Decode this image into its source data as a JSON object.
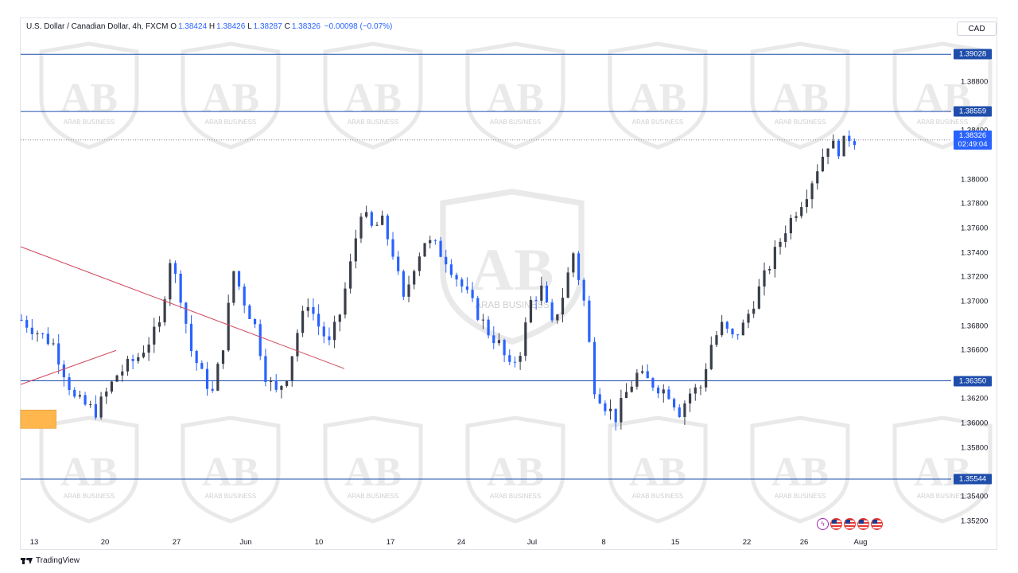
{
  "header": {
    "symbol": "U.S. Dollar / Canadian Dollar, 4h, FXCM",
    "open_label": "O",
    "open": "1.38424",
    "high_label": "H",
    "high": "1.38426",
    "low_label": "L",
    "low": "1.38287",
    "close_label": "C",
    "close": "1.38326",
    "change": "−0.00098 (−0.07%)"
  },
  "currency_button": "CAD",
  "footer": {
    "brand": "TradingView"
  },
  "watermark_text": "ARAB BUSINESS",
  "colors": {
    "candle": "#2962ff",
    "candle_dark": "#3a3e4a",
    "hline": "#1e4dab",
    "trendline": "#d2485e",
    "zone": "#ffb74d",
    "watermark": "#d7d7d7"
  },
  "events": [
    "flash-icon",
    "us-flag-icon",
    "us-flag-icon",
    "us-flag-icon",
    "us-flag-icon"
  ],
  "chart_data": {
    "type": "candlestick",
    "timeframe": "4h",
    "y_ticks": [
      "1.38800",
      "1.38400",
      "1.38000",
      "1.37800",
      "1.37600",
      "1.37400",
      "1.37200",
      "1.37000",
      "1.36800",
      "1.36600",
      "1.36200",
      "1.36000",
      "1.35800",
      "1.35400",
      "1.35200"
    ],
    "x_ticks": [
      "13",
      "20",
      "27",
      "Jun",
      "10",
      "17",
      "24",
      "Jul",
      "8",
      "15",
      "22",
      "26",
      "Aug"
    ],
    "horizontal_levels": [
      "1.39028",
      "1.38559",
      "1.36350",
      "1.35544"
    ],
    "current_price": {
      "value": "1.38326",
      "countdown": "02:49:04"
    },
    "ylim": [
      1.351,
      1.3918
    ],
    "price_path": [
      [
        0,
        1.3685
      ],
      [
        6,
        1.3665
      ],
      [
        10,
        1.362
      ],
      [
        14,
        1.361
      ],
      [
        18,
        1.364
      ],
      [
        22,
        1.3655
      ],
      [
        26,
        1.368
      ],
      [
        28,
        1.3735
      ],
      [
        30,
        1.3705
      ],
      [
        32,
        1.366
      ],
      [
        34,
        1.364
      ],
      [
        36,
        1.3625
      ],
      [
        38,
        1.3665
      ],
      [
        40,
        1.3725
      ],
      [
        42,
        1.37
      ],
      [
        44,
        1.368
      ],
      [
        46,
        1.364
      ],
      [
        48,
        1.3625
      ],
      [
        50,
        1.364
      ],
      [
        52,
        1.3675
      ],
      [
        54,
        1.37
      ],
      [
        56,
        1.368
      ],
      [
        58,
        1.3665
      ],
      [
        60,
        1.369
      ],
      [
        62,
        1.373
      ],
      [
        64,
        1.3775
      ],
      [
        66,
        1.376
      ],
      [
        68,
        1.3765
      ],
      [
        70,
        1.374
      ],
      [
        72,
        1.37
      ],
      [
        74,
        1.373
      ],
      [
        76,
        1.375
      ],
      [
        78,
        1.3745
      ],
      [
        80,
        1.3735
      ],
      [
        82,
        1.372
      ],
      [
        84,
        1.3705
      ],
      [
        86,
        1.369
      ],
      [
        88,
        1.3675
      ],
      [
        90,
        1.3665
      ],
      [
        92,
        1.3645
      ],
      [
        94,
        1.366
      ],
      [
        96,
        1.37
      ],
      [
        98,
        1.371
      ],
      [
        100,
        1.368
      ],
      [
        102,
        1.3705
      ],
      [
        104,
        1.374
      ],
      [
        106,
        1.37
      ],
      [
        108,
        1.363
      ],
      [
        110,
        1.3615
      ],
      [
        112,
        1.3605
      ],
      [
        114,
        1.3625
      ],
      [
        116,
        1.364
      ],
      [
        118,
        1.3635
      ],
      [
        120,
        1.363
      ],
      [
        122,
        1.3625
      ],
      [
        124,
        1.361
      ],
      [
        126,
        1.3625
      ],
      [
        128,
        1.363
      ],
      [
        130,
        1.3665
      ],
      [
        132,
        1.368
      ],
      [
        134,
        1.367
      ],
      [
        136,
        1.368
      ],
      [
        138,
        1.37
      ],
      [
        140,
        1.372
      ],
      [
        142,
        1.374
      ],
      [
        144,
        1.376
      ],
      [
        146,
        1.3775
      ],
      [
        148,
        1.379
      ],
      [
        150,
        1.381
      ],
      [
        152,
        1.383
      ],
      [
        154,
        1.3825
      ],
      [
        156,
        1.3835
      ],
      [
        157,
        1.3833
      ]
    ],
    "trendlines": [
      {
        "from": [
          0,
          1.3745
        ],
        "to": [
          61,
          1.3645
        ]
      },
      {
        "from": [
          0,
          1.3632
        ],
        "to": [
          18,
          1.366
        ]
      }
    ],
    "zone": {
      "x": [
        0,
        8
      ],
      "y": [
        1.3596,
        1.3611
      ]
    }
  }
}
